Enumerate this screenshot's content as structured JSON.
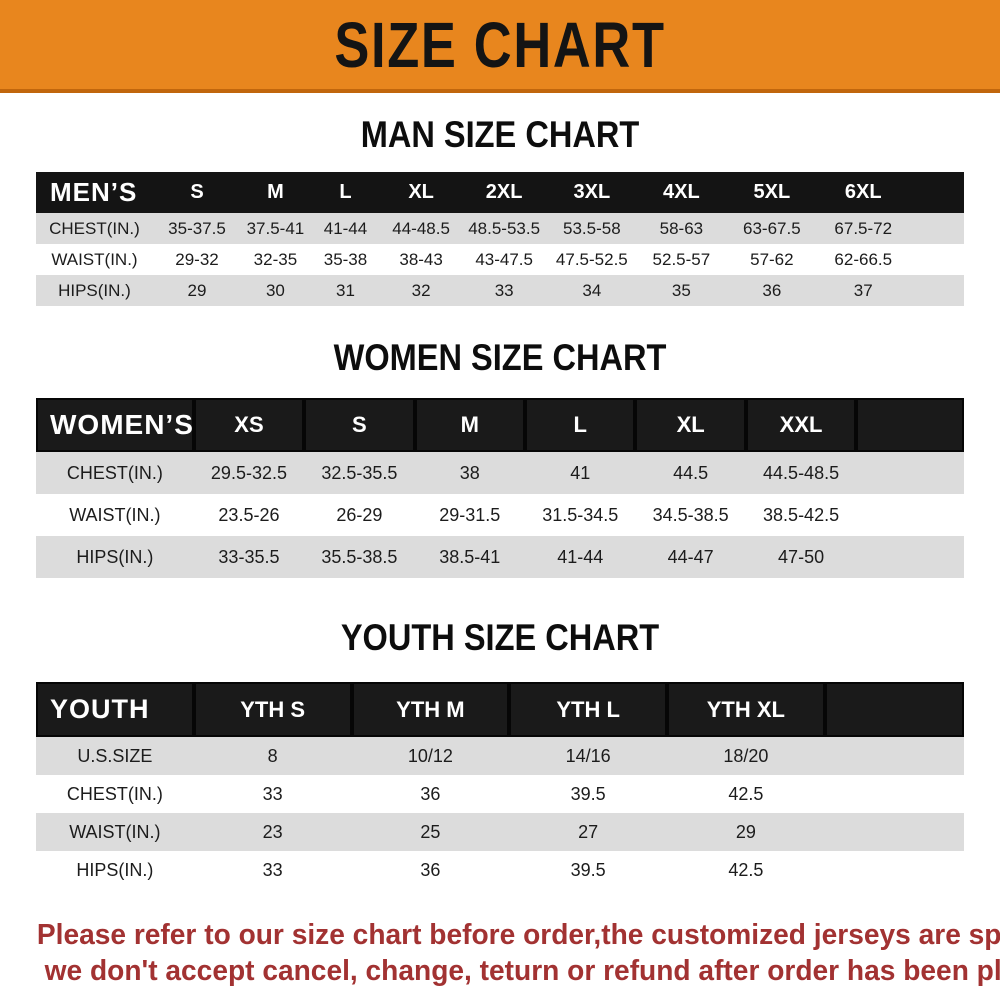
{
  "banner": {
    "title": "SIZE CHART"
  },
  "colors": {
    "banner_orange": "#E8861E",
    "banner_edge": "#C1660C",
    "header_bar_black": "#141414",
    "row_band_gray": "#DCDCDC",
    "footer_red": "#A23232"
  },
  "sections": [
    {
      "heading": "MAN SIZE CHART",
      "header_label": "MEN’S",
      "columns": [
        "S",
        "M",
        "L",
        "XL",
        "2XL",
        "3XL",
        "4XL",
        "5XL",
        "6XL"
      ],
      "rows": [
        {
          "label": "CHEST(IN.)",
          "values": [
            "35-37.5",
            "37.5-41",
            "41-44",
            "44-48.5",
            "48.5-53.5",
            "53.5-58",
            "58-63",
            "63-67.5",
            "67.5-72"
          ]
        },
        {
          "label": "WAIST(IN.)",
          "values": [
            "29-32",
            "32-35",
            "35-38",
            "38-43",
            "43-47.5",
            "47.5-52.5",
            "52.5-57",
            "57-62",
            "62-66.5"
          ]
        },
        {
          "label": "HIPS(IN.)",
          "values": [
            "29",
            "30",
            "31",
            "32",
            "33",
            "34",
            "35",
            "36",
            "37"
          ]
        }
      ]
    },
    {
      "heading": "WOMEN SIZE CHART",
      "header_label": "WOMEN’S",
      "columns": [
        "XS",
        "S",
        "M",
        "L",
        "XL",
        "XXL"
      ],
      "rows": [
        {
          "label": "CHEST(IN.)",
          "values": [
            "29.5-32.5",
            "32.5-35.5",
            "38",
            "41",
            "44.5",
            "44.5-48.5"
          ]
        },
        {
          "label": "WAIST(IN.)",
          "values": [
            "23.5-26",
            "26-29",
            "29-31.5",
            "31.5-34.5",
            "34.5-38.5",
            "38.5-42.5"
          ]
        },
        {
          "label": "HIPS(IN.)",
          "values": [
            "33-35.5",
            "35.5-38.5",
            "38.5-41",
            "41-44",
            "44-47",
            "47-50"
          ]
        }
      ]
    },
    {
      "heading": "YOUTH SIZE CHART",
      "header_label": "YOUTH",
      "columns": [
        "YTH S",
        "YTH M",
        "YTH L",
        "YTH XL"
      ],
      "rows": [
        {
          "label": "U.S.SIZE",
          "values": [
            "8",
            "10/12",
            "14/16",
            "18/20"
          ]
        },
        {
          "label": "CHEST(IN.)",
          "values": [
            "33",
            "36",
            "39.5",
            "42.5"
          ]
        },
        {
          "label": "WAIST(IN.)",
          "values": [
            "23",
            "25",
            "27",
            "29"
          ]
        },
        {
          "label": "HIPS(IN.)",
          "values": [
            "33",
            "36",
            "39.5",
            "42.5"
          ]
        }
      ]
    }
  ],
  "footer": {
    "line1": "Please refer to our size chart before order,the customized jerseys are special products,",
    "line2": "we don't accept cancel, change, teturn or refund after order has been placed!"
  }
}
